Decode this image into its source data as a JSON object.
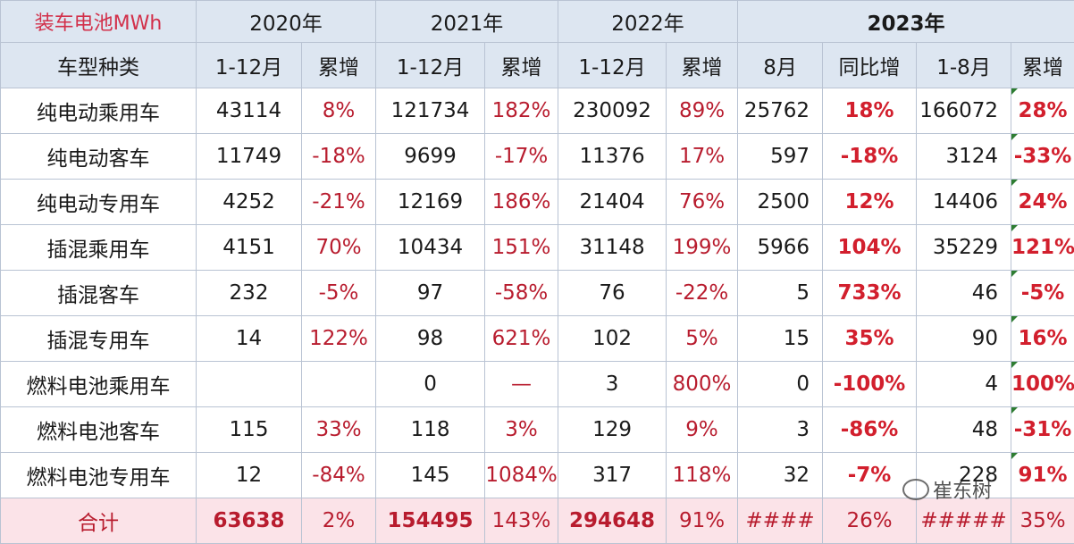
{
  "header": {
    "corner": "装车电池MWh",
    "years": [
      "2020年",
      "2021年",
      "2022年",
      "2023年"
    ],
    "type_label": "车型种类",
    "col_1_12": "1-12月",
    "col_cum": "累增",
    "col_aug": "8月",
    "col_yoy": "同比增",
    "col_1_8": "1-8月"
  },
  "rows": [
    {
      "name": "纯电动乘用车",
      "v2020": "43114",
      "g2020": "8%",
      "v2021": "121734",
      "g2021": "182%",
      "v2022": "230092",
      "g2022": "89%",
      "aug": "25762",
      "yoy": "18%",
      "v1_8": "166072",
      "g2023": "28%"
    },
    {
      "name": "纯电动客车",
      "v2020": "11749",
      "g2020": "-18%",
      "v2021": "9699",
      "g2021": "-17%",
      "v2022": "11376",
      "g2022": "17%",
      "aug": "597",
      "yoy": "-18%",
      "v1_8": "3124",
      "g2023": "-33%"
    },
    {
      "name": "纯电动专用车",
      "v2020": "4252",
      "g2020": "-21%",
      "v2021": "12169",
      "g2021": "186%",
      "v2022": "21404",
      "g2022": "76%",
      "aug": "2500",
      "yoy": "12%",
      "v1_8": "14406",
      "g2023": "24%"
    },
    {
      "name": "插混乘用车",
      "v2020": "4151",
      "g2020": "70%",
      "v2021": "10434",
      "g2021": "151%",
      "v2022": "31148",
      "g2022": "199%",
      "aug": "5966",
      "yoy": "104%",
      "v1_8": "35229",
      "g2023": "121%"
    },
    {
      "name": "插混客车",
      "v2020": "232",
      "g2020": "-5%",
      "v2021": "97",
      "g2021": "-58%",
      "v2022": "76",
      "g2022": "-22%",
      "aug": "5",
      "yoy": "733%",
      "v1_8": "46",
      "g2023": "-5%"
    },
    {
      "name": "插混专用车",
      "v2020": "14",
      "g2020": "122%",
      "v2021": "98",
      "g2021": "621%",
      "v2022": "102",
      "g2022": "5%",
      "aug": "15",
      "yoy": "35%",
      "v1_8": "90",
      "g2023": "16%"
    },
    {
      "name": "燃料电池乘用车",
      "v2020": "",
      "g2020": "",
      "v2021": "0",
      "g2021": "—",
      "v2022": "3",
      "g2022": "800%",
      "aug": "0",
      "yoy": "-100%",
      "v1_8": "4",
      "g2023": "100%"
    },
    {
      "name": "燃料电池客车",
      "v2020": "115",
      "g2020": "33%",
      "v2021": "118",
      "g2021": "3%",
      "v2022": "129",
      "g2022": "9%",
      "aug": "3",
      "yoy": "-86%",
      "v1_8": "48",
      "g2023": "-31%"
    },
    {
      "name": "燃料电池专用车",
      "v2020": "12",
      "g2020": "-84%",
      "v2021": "145",
      "g2021": "1084%",
      "v2022": "317",
      "g2022": "118%",
      "aug": "32",
      "yoy": "-7%",
      "v1_8": "228",
      "g2023": "91%"
    }
  ],
  "total": {
    "name": "合计",
    "v2020": "63638",
    "g2020": "2%",
    "v2021": "154495",
    "g2021": "143%",
    "v2022": "294648",
    "g2022": "91%",
    "aug": "####",
    "yoy": "26%",
    "v1_8": "#####",
    "g2023": "35%"
  },
  "watermark": {
    "text": "崔东树",
    "icon": "wechat-icon"
  }
}
